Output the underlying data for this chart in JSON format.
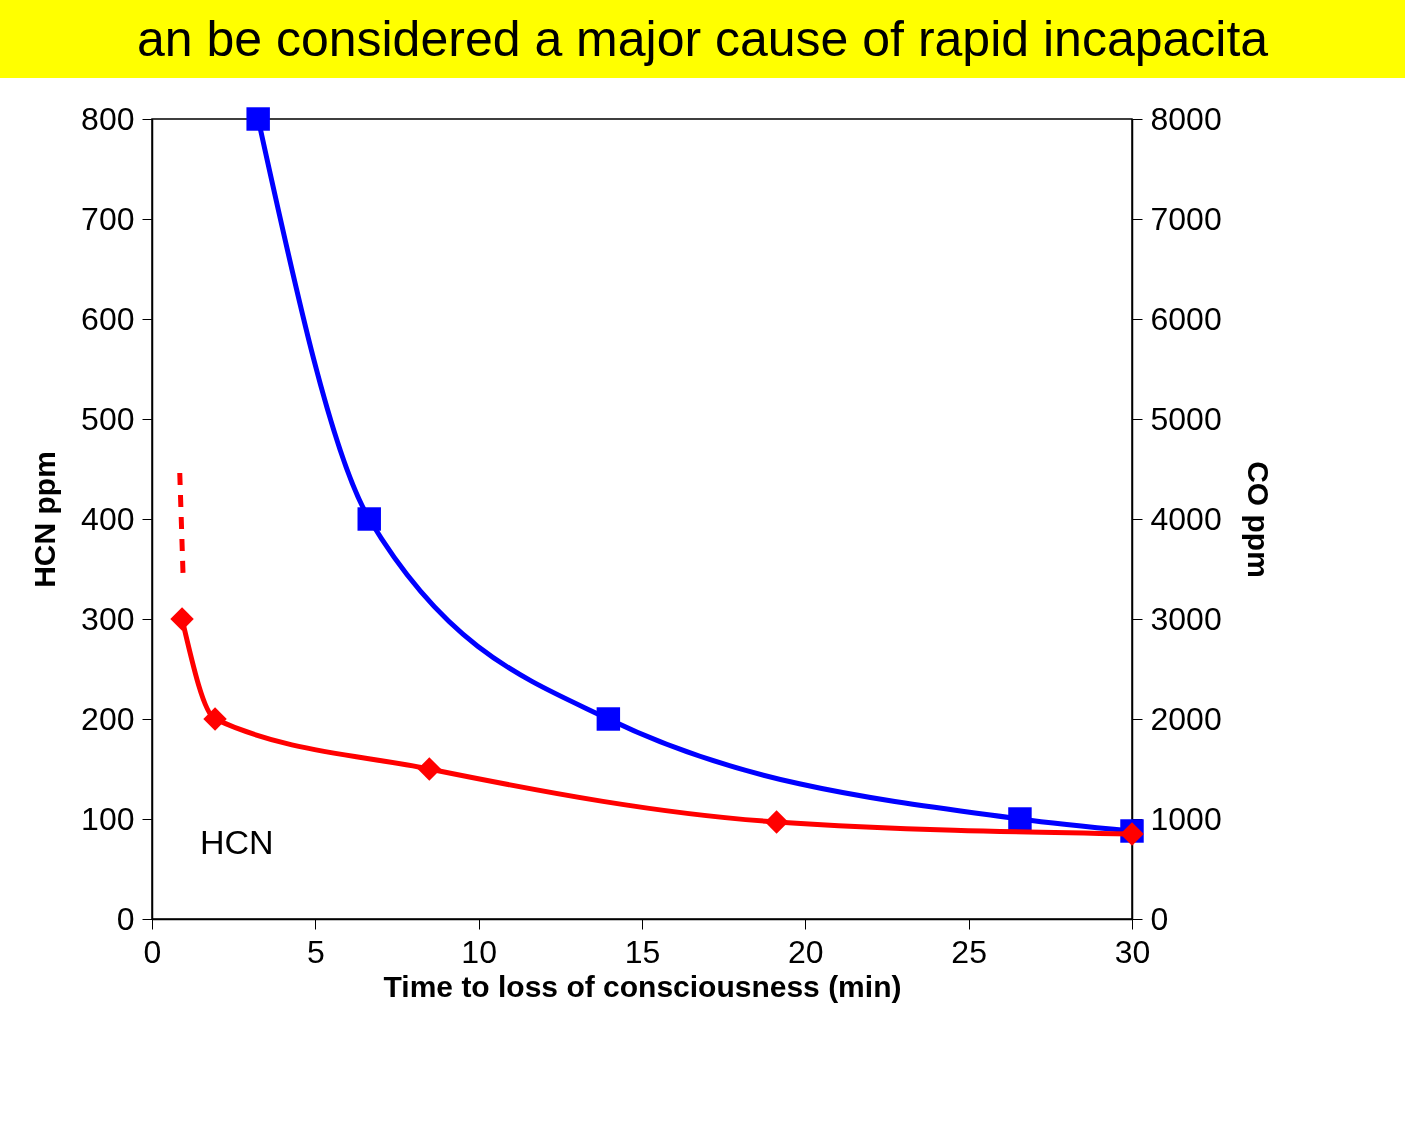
{
  "chart_data": {
    "type": "line",
    "xlabel": "Time to loss of consciousness (min)",
    "ylabel": "HCN ppm",
    "y2label": "CO ppm",
    "xlim": [
      0,
      30
    ],
    "xticks": [
      0,
      5,
      10,
      15,
      20,
      25,
      30
    ],
    "ylim": [
      0,
      800
    ],
    "yticks": [
      0,
      100,
      200,
      300,
      400,
      500,
      600,
      700,
      800
    ],
    "y2lim": [
      0,
      8000
    ],
    "y2ticks": [
      0,
      1000,
      2000,
      3000,
      4000,
      5000,
      6000,
      7000,
      8000
    ],
    "series": [
      {
        "color": "#ff0000",
        "marker": "diamond",
        "line_style": "solid",
        "x": [
          0.92,
          1.93,
          8.49,
          19.12,
          30
        ],
        "values": [
          300,
          200,
          150,
          97,
          85
        ]
      },
      {
        "color": "#ff0000",
        "marker": "none",
        "line_style": "dashed",
        "x": [
          0.85,
          0.95
        ],
        "values": [
          446,
          345
        ]
      },
      {
        "color": "#0000ff",
        "marker": "square",
        "line_style": "solid",
        "axis": "y2",
        "x": [
          3.25,
          6.65,
          13.97,
          26.57,
          30
        ],
        "values": [
          8000,
          4000,
          2000,
          1000,
          880
        ]
      }
    ],
    "annotations": [
      "an be considered a major cause of rapid incapacita",
      "HCN"
    ]
  }
}
